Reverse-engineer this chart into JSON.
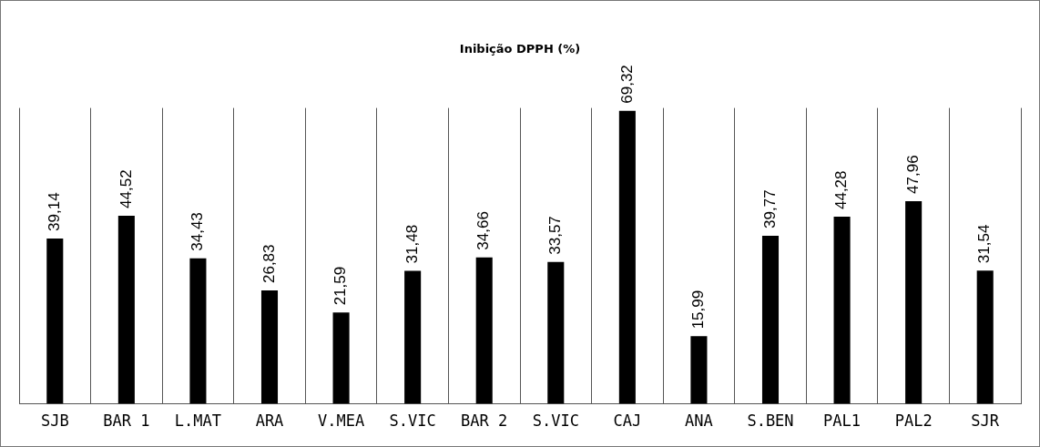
{
  "chart_data": {
    "type": "bar",
    "title": "Inibição DPPH (%)",
    "categories": [
      "SJB",
      "BAR 1",
      "L.MAT",
      "ARA",
      "V.MEA",
      "S.VIC",
      "BAR 2",
      "S.VIC",
      "CAJ",
      "ANA",
      "S.BEN",
      "PAL1",
      "PAL2",
      "SJR"
    ],
    "values": [
      39.14,
      44.52,
      34.43,
      26.83,
      21.59,
      31.48,
      34.66,
      33.57,
      69.32,
      15.99,
      39.77,
      44.28,
      47.96,
      31.54
    ],
    "value_labels": [
      "39,14",
      "44,52",
      "34,43",
      "26,83",
      "21,59",
      "31,48",
      "34,66",
      "33,57",
      "69,32",
      "15,99",
      "39,77",
      "44,28",
      "47,96",
      "31,54"
    ],
    "color": "#000000",
    "grid": "x",
    "legend": false
  }
}
